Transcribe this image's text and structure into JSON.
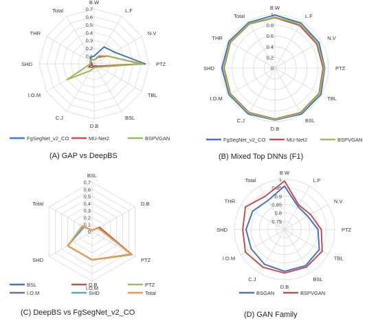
{
  "chart_data": [
    {
      "type": "radar",
      "caption": "(A)  GAP vs DeepBS",
      "axes": [
        "B.W",
        "L.F",
        "N.V",
        "PTZ",
        "TBL",
        "BSL",
        "D.B",
        "C.J",
        "I.O.M",
        "SHD",
        "THR",
        "Total"
      ],
      "rlim": [
        0,
        0.7
      ],
      "ticks": [
        0,
        0.1,
        0.2,
        0.3,
        0.4,
        0.5,
        0.6,
        0.7
      ],
      "tick_labels": [
        "0",
        "0.1",
        "0.2",
        "0.3",
        "0.4",
        "0.5",
        "0.6",
        "0.7"
      ],
      "grid_shape": "polygon",
      "legend_position": "bottom",
      "series": [
        {
          "name": "FgSegNet_v2_CO",
          "color": "#4472c4",
          "values": [
            0.1,
            0.25,
            0.3,
            0.65,
            0.06,
            0.03,
            0.03,
            0.03,
            0.03,
            0.03,
            0.05,
            0.1
          ]
        },
        {
          "name": "MU-Net2",
          "color": "#c0504d",
          "values": [
            0.05,
            0.1,
            0.2,
            0.6,
            0.06,
            0.03,
            0.03,
            0.05,
            0.08,
            0.03,
            0.05,
            0.07
          ]
        },
        {
          "name": "BSPVGAN",
          "color": "#9bbb59",
          "values": [
            0.05,
            0.12,
            0.2,
            0.62,
            0.08,
            0.05,
            0.05,
            0.1,
            0.4,
            0.05,
            0.06,
            0.07
          ]
        }
      ]
    },
    {
      "type": "radar",
      "caption": "(B)  Mixed Top DNNs (F1)",
      "axes": [
        "B.W",
        "L.F",
        "N.V",
        "PTZ",
        "TBL",
        "BSL",
        "D.B",
        "C.J",
        "I.O.M",
        "SHD",
        "THR",
        "Total"
      ],
      "rlim": [
        0,
        1
      ],
      "ticks": [
        0,
        0.2,
        0.4,
        0.6,
        0.8,
        1
      ],
      "tick_labels": [
        "0",
        "0.2",
        "0.4",
        "0.6",
        "0.8",
        "1"
      ],
      "grid_shape": "circle",
      "legend_position": "bottom",
      "series": [
        {
          "name": "FgSegNet_v2_CO",
          "color": "#4472c4",
          "values": [
            0.99,
            0.97,
            0.95,
            0.93,
            0.99,
            0.99,
            0.97,
            0.99,
            0.99,
            0.99,
            0.99,
            0.98
          ]
        },
        {
          "name": "MU-Net2",
          "color": "#c0504d",
          "values": [
            0.94,
            0.92,
            0.9,
            0.9,
            0.95,
            0.96,
            0.95,
            0.96,
            0.96,
            0.95,
            0.96,
            0.95
          ]
        },
        {
          "name": "BSPVGAN",
          "color": "#9bbb59",
          "values": [
            0.95,
            0.95,
            0.92,
            0.92,
            0.96,
            0.97,
            0.96,
            0.97,
            0.97,
            0.96,
            0.97,
            0.96
          ]
        }
      ]
    },
    {
      "type": "radar",
      "caption": "(C)  DeepBS vs FgSegNet_v2_CO",
      "axes": [
        "BSL",
        "D.B",
        "PTZ",
        "I.O.M",
        "SHD",
        "Total"
      ],
      "rlim": [
        0,
        0.7
      ],
      "ticks": [
        0,
        0.1,
        0.2,
        0.3,
        0.4,
        0.5,
        0.6,
        0.7
      ],
      "tick_labels": [
        "0",
        "0.1",
        "0.2",
        "0.3",
        "0.4",
        "0.5",
        "0.6",
        "0.7"
      ],
      "grid_shape": "polygon",
      "legend_position": "bottom",
      "series": [
        {
          "name": "BSL",
          "color": "#4472c4",
          "values": [
            0.02,
            0.12,
            0.65,
            0.4,
            0.4,
            0.15
          ]
        },
        {
          "name": "D.B",
          "color": "#c0504d",
          "values": [
            0.02,
            0.12,
            0.65,
            0.4,
            0.4,
            0.14
          ]
        },
        {
          "name": "PTZ",
          "color": "#9bbb59",
          "values": [
            0.02,
            0.1,
            0.65,
            0.4,
            0.4,
            0.14
          ]
        },
        {
          "name": "I.O.M",
          "color": "#8064a2",
          "values": [
            0.02,
            0.1,
            0.64,
            0.4,
            0.4,
            0.13
          ]
        },
        {
          "name": "SHD",
          "color": "#4bacc6",
          "values": [
            0.02,
            0.1,
            0.64,
            0.4,
            0.4,
            0.13
          ]
        },
        {
          "name": "Total",
          "color": "#f79646",
          "values": [
            0.02,
            0.1,
            0.64,
            0.4,
            0.4,
            0.16
          ]
        }
      ]
    },
    {
      "type": "radar",
      "caption": "(D)  GAN Family",
      "axes": [
        "B.W",
        "L.F",
        "N.V",
        "PTZ",
        "TBL",
        "BSL",
        "D.B",
        "C.J",
        "I.O.M",
        "SHD",
        "THR",
        "Total"
      ],
      "rlim": [
        0.7,
        1
      ],
      "ticks": [
        0.75,
        0.8,
        0.85,
        0.9,
        0.95,
        1
      ],
      "tick_labels": [
        "0.75",
        "0.8",
        "0.85",
        "0.9",
        "0.95",
        "1"
      ],
      "grid_shape": "circle",
      "legend_position": "bottom",
      "series": [
        {
          "name": "BSGAN",
          "color": "#4472c4",
          "values": [
            0.96,
            0.86,
            0.86,
            0.9,
            0.94,
            0.95,
            0.95,
            0.94,
            0.93,
            0.93,
            0.92,
            0.9
          ]
        },
        {
          "name": "BSPVGAN",
          "color": "#c0504d",
          "values": [
            0.99,
            0.87,
            0.88,
            0.92,
            0.96,
            0.96,
            0.96,
            0.96,
            0.97,
            0.95,
            0.97,
            0.93
          ]
        }
      ]
    }
  ]
}
